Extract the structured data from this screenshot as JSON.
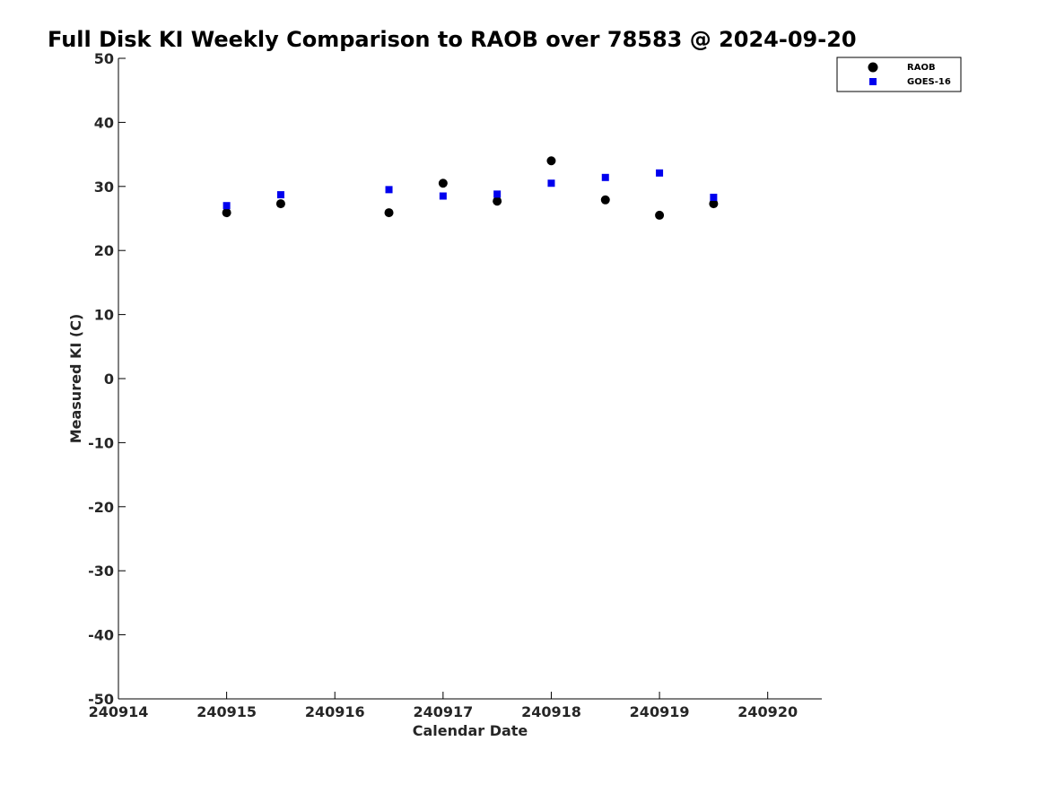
{
  "chart_data": {
    "type": "scatter",
    "title": "Full Disk KI Weekly Comparison to RAOB over 78583 @ 2024-09-20",
    "xlabel": "Calendar Date",
    "ylabel": "Measured KI (C)",
    "xlim": [
      240914,
      240920.5
    ],
    "ylim": [
      -50,
      50
    ],
    "xticks": [
      240914,
      240915,
      240916,
      240917,
      240918,
      240919,
      240920
    ],
    "xtick_labels": [
      "240914",
      "240915",
      "240916",
      "240917",
      "240918",
      "240919",
      "240920"
    ],
    "yticks": [
      50,
      40,
      30,
      20,
      10,
      0,
      -10,
      -20,
      -30,
      -40,
      -50
    ],
    "ytick_labels": [
      "50",
      "40",
      "30",
      "20",
      "10",
      "0",
      "-10",
      "-20",
      "-30",
      "-40",
      "-50"
    ],
    "grid": false,
    "legend_position": "top-right",
    "series": [
      {
        "name": "RAOB",
        "marker": "circle",
        "color": "#000000",
        "points": [
          {
            "x": 240915.0,
            "y": 25.9
          },
          {
            "x": 240915.5,
            "y": 27.3
          },
          {
            "x": 240916.5,
            "y": 25.9
          },
          {
            "x": 240917.0,
            "y": 30.5
          },
          {
            "x": 240917.5,
            "y": 27.7
          },
          {
            "x": 240918.0,
            "y": 34.0
          },
          {
            "x": 240918.5,
            "y": 27.9
          },
          {
            "x": 240919.0,
            "y": 25.5
          },
          {
            "x": 240919.5,
            "y": 27.3
          }
        ]
      },
      {
        "name": "GOES-16",
        "marker": "square",
        "color": "#0000ee",
        "points": [
          {
            "x": 240915.0,
            "y": 27.0
          },
          {
            "x": 240915.5,
            "y": 28.7
          },
          {
            "x": 240916.5,
            "y": 29.5
          },
          {
            "x": 240917.0,
            "y": 28.5
          },
          {
            "x": 240917.5,
            "y": 28.8
          },
          {
            "x": 240918.0,
            "y": 30.5
          },
          {
            "x": 240918.5,
            "y": 31.4
          },
          {
            "x": 240919.0,
            "y": 32.1
          },
          {
            "x": 240919.5,
            "y": 28.3
          }
        ]
      }
    ]
  }
}
